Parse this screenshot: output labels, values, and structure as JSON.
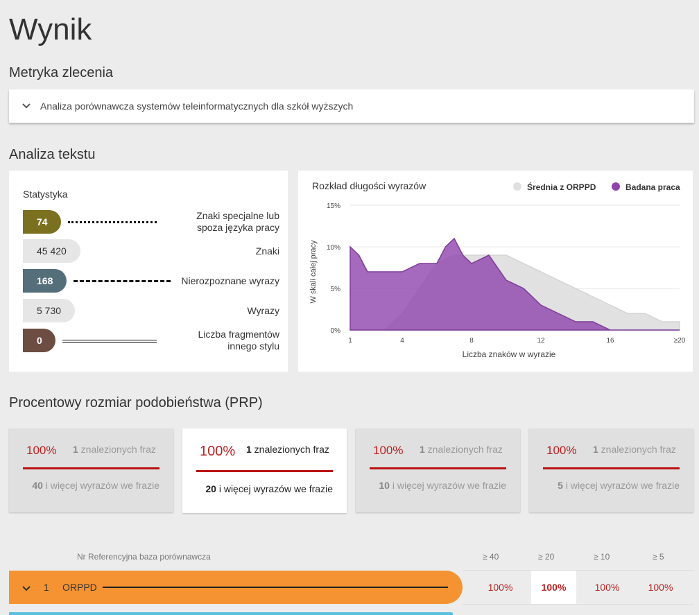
{
  "page": {
    "title": "Wynik"
  },
  "sections": {
    "metric": "Metryka zlecenia",
    "analysis": "Analiza tekstu",
    "prp": "Procentowy rozmiar podobieństwa (PRP)"
  },
  "metric_card": {
    "title": "Analiza porównawcza systemów teleinformatycznych dla szkół wyższych"
  },
  "stats": {
    "label": "Statystyka",
    "rows": [
      {
        "value": "74",
        "label": "Znaki specjalne lub spoza języka pracy",
        "color": "#7b7020"
      },
      {
        "value": "45 420",
        "label": "Znaki"
      },
      {
        "value": "168",
        "label": "Nierozpoznane wyrazy",
        "color": "#546e7a"
      },
      {
        "value": "5 730",
        "label": "Wyrazy"
      },
      {
        "value": "0",
        "label": "Liczba fragmentów innego stylu",
        "color": "#6d4c41"
      }
    ]
  },
  "chart_data": {
    "type": "area",
    "title": "Rozkład długości wyrazów",
    "xlabel": "Liczba znaków w wyrazie",
    "ylabel": "W skali całej pracy",
    "x_ticks": [
      "1",
      "4",
      "8",
      "12",
      "16",
      "≥20"
    ],
    "y_ticks": [
      "0%",
      "5%",
      "10%",
      "15%"
    ],
    "ylim": [
      0,
      15
    ],
    "xlim": [
      1,
      20
    ],
    "legend": [
      "Średnia z ORPPD",
      "Badana praca"
    ],
    "series": [
      {
        "name": "Średnia z ORPPD",
        "color": "#dcdcdc",
        "x": [
          1,
          2,
          3,
          4,
          5,
          6,
          7,
          8,
          9,
          10,
          11,
          12,
          13,
          14,
          15,
          16,
          17,
          18,
          19,
          20
        ],
        "y": [
          0,
          0,
          0,
          2,
          5,
          8,
          9,
          9,
          9,
          9,
          8,
          7,
          6,
          5,
          4,
          3,
          2,
          2,
          1,
          1
        ]
      },
      {
        "name": "Badana praca",
        "color": "#8e44ad",
        "x": [
          1,
          1.5,
          2,
          3,
          4,
          5,
          6,
          6.5,
          7,
          7.5,
          8,
          8.5,
          9,
          10,
          11,
          12,
          13,
          14,
          15,
          16,
          17,
          18,
          19,
          20
        ],
        "y": [
          10,
          9,
          7,
          7,
          7,
          8,
          8,
          10,
          11,
          9,
          8,
          8.5,
          9,
          6,
          5,
          3,
          2,
          1,
          1,
          0,
          0,
          0,
          0,
          0
        ]
      }
    ]
  },
  "prp_cards": [
    {
      "pct": "100%",
      "found_n": "1",
      "found_text": " znalezionych fraz",
      "words_n": "40",
      "words_text": " i więcej wyrazów we frazie"
    },
    {
      "pct": "100%",
      "found_n": "1",
      "found_text": " znalezionych fraz",
      "words_n": "20",
      "words_text": " i więcej wyrazów we frazie"
    },
    {
      "pct": "100%",
      "found_n": "1",
      "found_text": " znalezionych fraz",
      "words_n": "10",
      "words_text": " i więcej wyrazów we frazie"
    },
    {
      "pct": "100%",
      "found_n": "1",
      "found_text": " znalezionych fraz",
      "words_n": "5",
      "words_text": " i więcej wyrazów we frazie"
    }
  ],
  "table": {
    "head": {
      "ref": "Nr Referencyjna baza porównawcza",
      "c40": "≥ 40",
      "c20": "≥ 20",
      "c10": "≥ 10",
      "c5": "≥ 5"
    },
    "rows": [
      {
        "nr": "1",
        "name": "ORPPD",
        "v40": "100%",
        "v20": "100%",
        "v10": "100%",
        "v5": "100%",
        "color": "#f59332"
      }
    ]
  }
}
